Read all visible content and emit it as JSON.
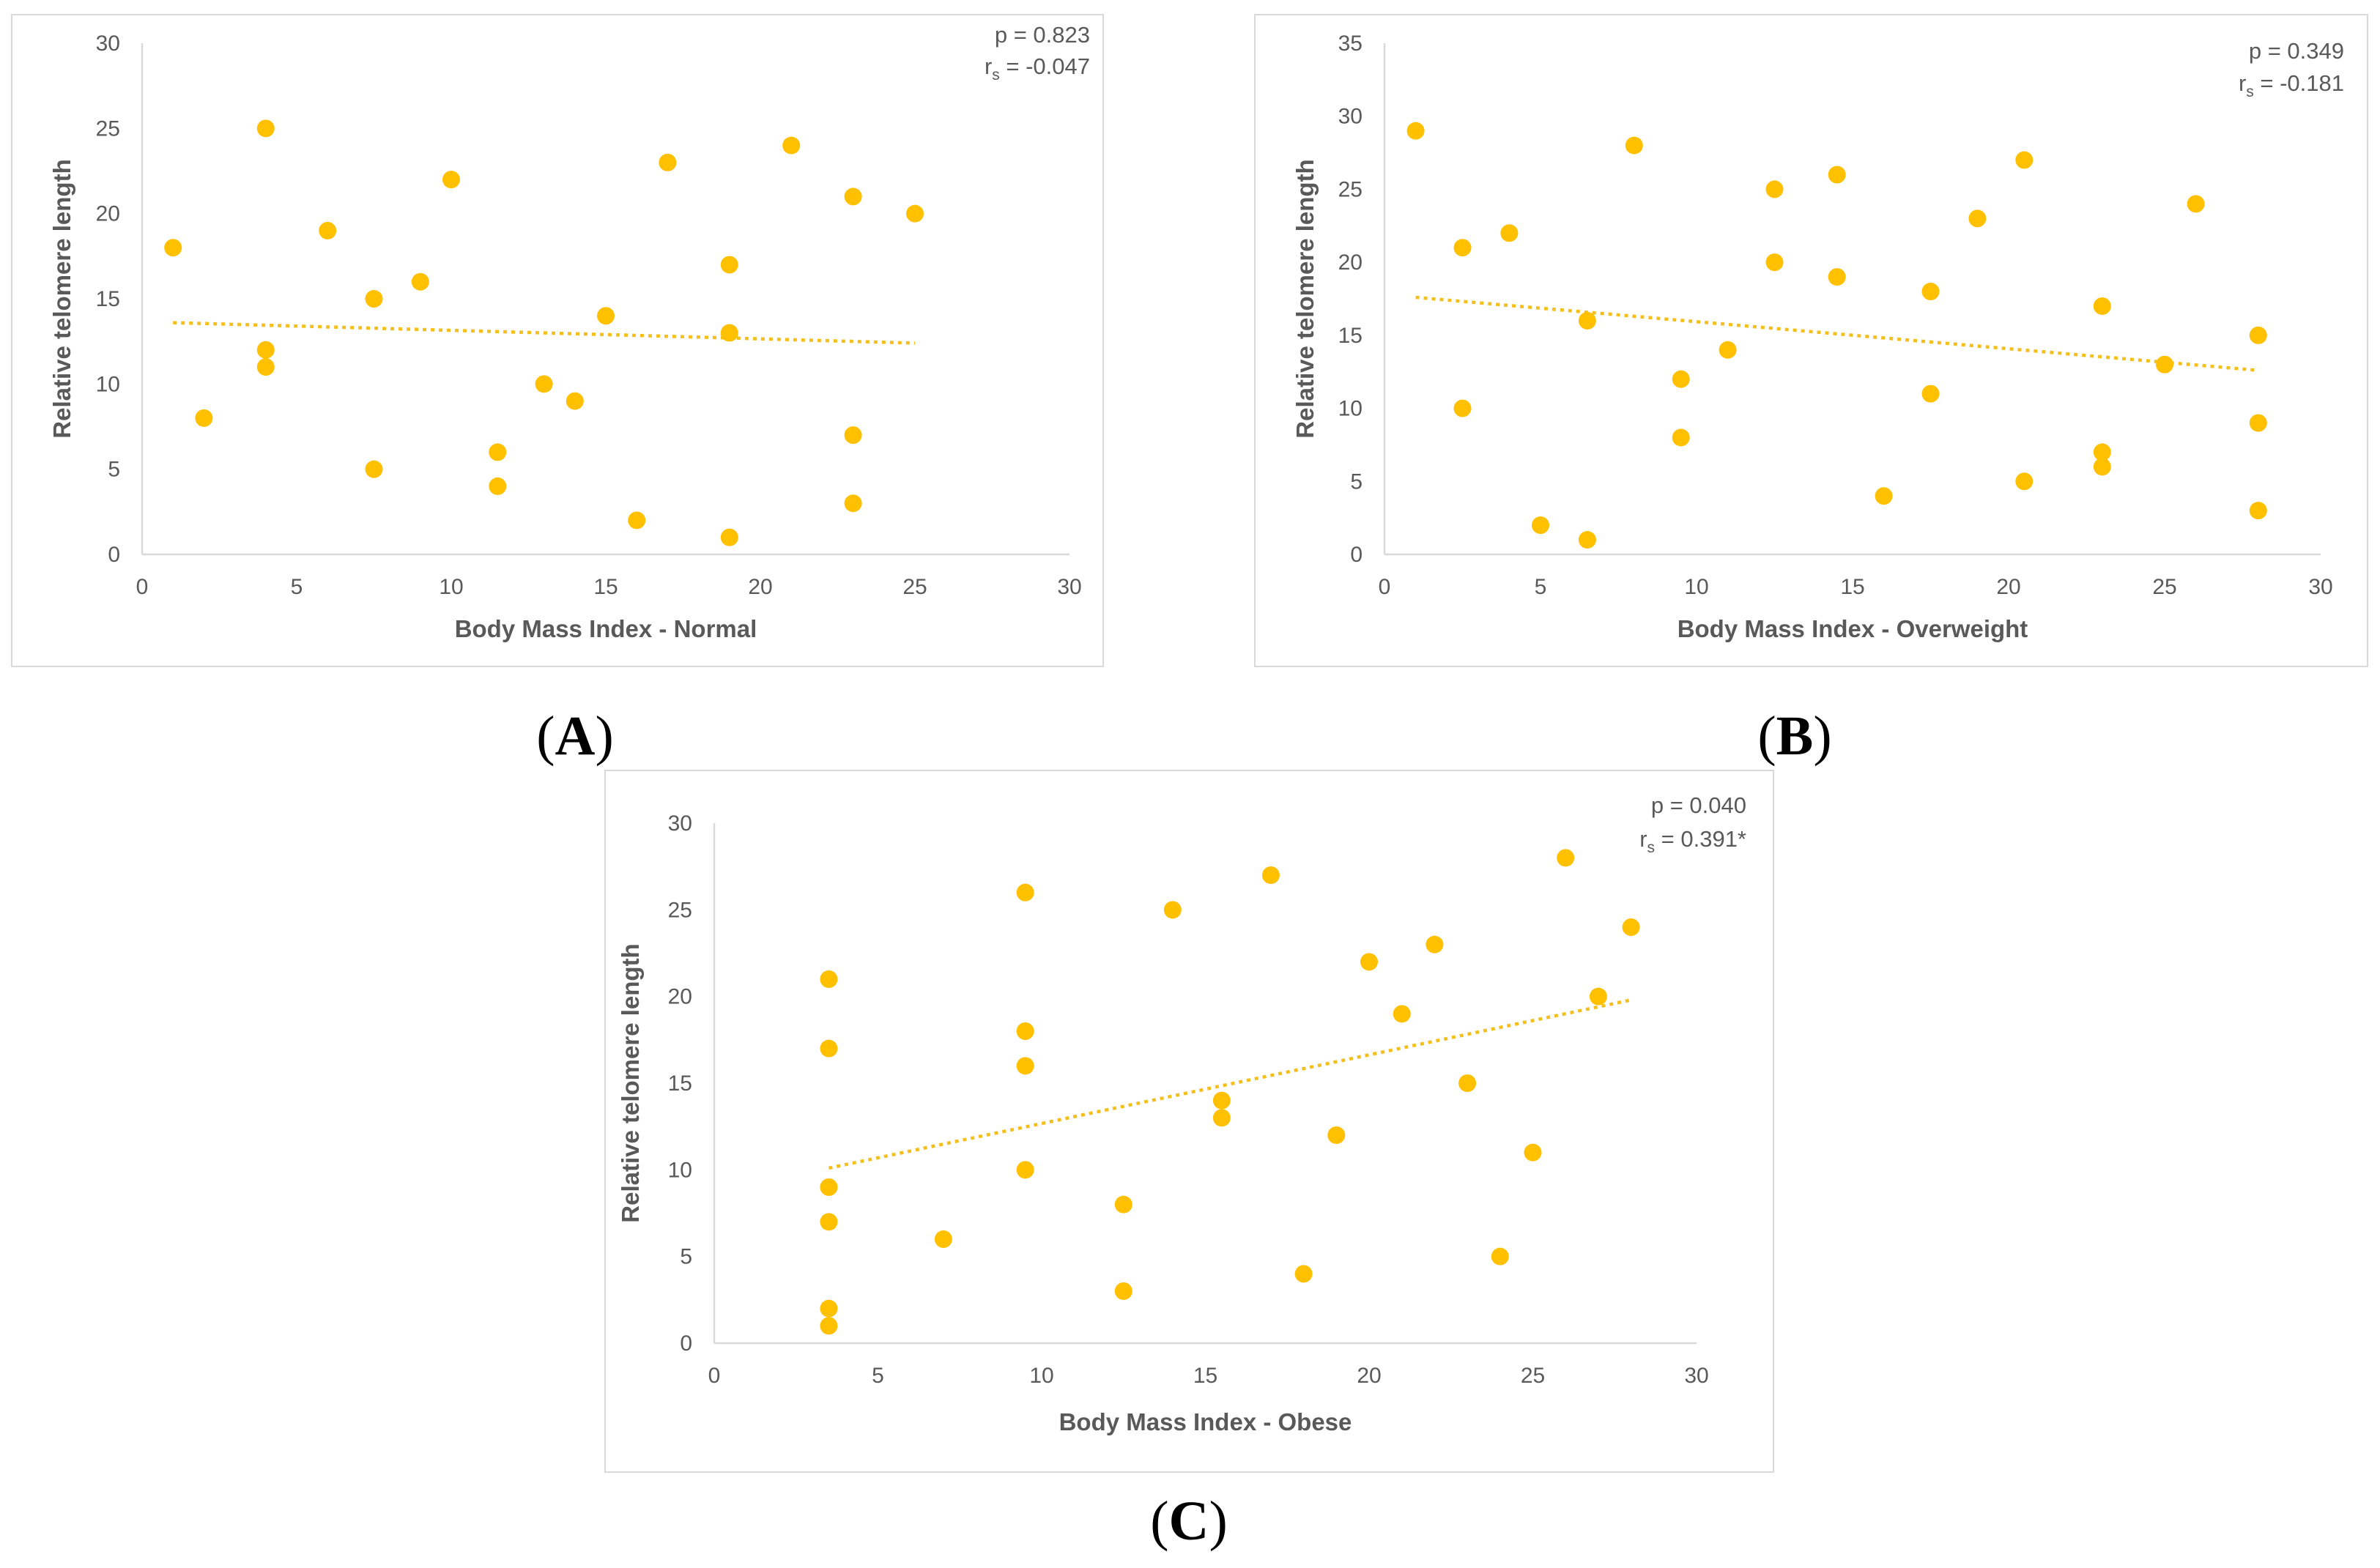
{
  "chart_data": [
    {
      "id": "A",
      "type": "scatter",
      "panel_label": "A",
      "xlabel": "Body Mass Index - Normal",
      "ylabel": "Relative telomere length",
      "xlim": [
        0,
        30
      ],
      "ylim": [
        0,
        30
      ],
      "xticks": [
        "0",
        "5",
        "10",
        "15",
        "20",
        "25",
        "30"
      ],
      "yticks": [
        "0",
        "5",
        "10",
        "15",
        "20",
        "25",
        "30"
      ],
      "stats": {
        "p_label": "p = 0.823",
        "rs_prefix": "r",
        "rs_sub": "s",
        "rs_value": " = -0.047"
      },
      "series_color": "#ffc000",
      "points": [
        [
          1,
          18
        ],
        [
          2,
          8
        ],
        [
          4,
          25
        ],
        [
          4,
          12
        ],
        [
          4,
          11
        ],
        [
          6,
          19
        ],
        [
          7.5,
          15
        ],
        [
          7.5,
          5
        ],
        [
          9,
          16
        ],
        [
          10,
          22
        ],
        [
          11.5,
          6
        ],
        [
          11.5,
          4
        ],
        [
          13,
          10
        ],
        [
          14,
          9
        ],
        [
          15,
          14
        ],
        [
          16,
          2
        ],
        [
          17,
          23
        ],
        [
          19,
          17
        ],
        [
          19,
          13
        ],
        [
          19,
          1
        ],
        [
          21,
          24
        ],
        [
          23,
          21
        ],
        [
          23,
          7
        ],
        [
          23,
          3
        ],
        [
          25,
          20
        ]
      ],
      "trendline": [
        [
          1,
          13.6
        ],
        [
          25,
          12.4
        ]
      ]
    },
    {
      "id": "B",
      "type": "scatter",
      "panel_label": "B",
      "xlabel": "Body Mass Index - Overweight",
      "ylabel": "Relative telomere length",
      "xlim": [
        0,
        30
      ],
      "ylim": [
        0,
        35
      ],
      "xticks": [
        "0",
        "5",
        "10",
        "15",
        "20",
        "25",
        "30"
      ],
      "yticks": [
        "0",
        "5",
        "10",
        "15",
        "20",
        "25",
        "30",
        "35"
      ],
      "stats": {
        "p_label": "p = 0.349",
        "rs_prefix": "r",
        "rs_sub": "s",
        "rs_value": " = -0.181"
      },
      "series_color": "#ffc000",
      "points": [
        [
          1,
          29
        ],
        [
          2.5,
          21
        ],
        [
          2.5,
          10
        ],
        [
          4,
          22
        ],
        [
          5,
          2
        ],
        [
          6.5,
          16
        ],
        [
          6.5,
          1
        ],
        [
          8,
          28
        ],
        [
          9.5,
          12
        ],
        [
          9.5,
          8
        ],
        [
          11,
          14
        ],
        [
          12.5,
          25
        ],
        [
          12.5,
          20
        ],
        [
          14.5,
          26
        ],
        [
          14.5,
          19
        ],
        [
          16,
          4
        ],
        [
          17.5,
          18
        ],
        [
          17.5,
          11
        ],
        [
          19,
          23
        ],
        [
          20.5,
          27
        ],
        [
          20.5,
          5
        ],
        [
          23,
          17
        ],
        [
          23,
          7
        ],
        [
          23,
          6
        ],
        [
          25,
          13
        ],
        [
          26,
          24
        ],
        [
          28,
          15
        ],
        [
          28,
          9
        ],
        [
          28,
          3
        ]
      ],
      "trendline": [
        [
          1,
          17.6
        ],
        [
          28,
          12.6
        ]
      ]
    },
    {
      "id": "C",
      "type": "scatter",
      "panel_label": "C",
      "xlabel": "Body Mass Index - Obese",
      "ylabel": "Relative telomere length",
      "xlim": [
        0,
        30
      ],
      "ylim": [
        0,
        30
      ],
      "xticks": [
        "0",
        "5",
        "10",
        "15",
        "20",
        "25",
        "30"
      ],
      "yticks": [
        "0",
        "5",
        "10",
        "15",
        "20",
        "25",
        "30"
      ],
      "stats": {
        "p_label": "p = 0.040",
        "rs_prefix": "r",
        "rs_sub": "s",
        "rs_value": " = 0.391*"
      },
      "series_color": "#ffc000",
      "points": [
        [
          3.5,
          21
        ],
        [
          3.5,
          17
        ],
        [
          3.5,
          9
        ],
        [
          3.5,
          7
        ],
        [
          3.5,
          2
        ],
        [
          3.5,
          1
        ],
        [
          7,
          6
        ],
        [
          9.5,
          26
        ],
        [
          9.5,
          18
        ],
        [
          9.5,
          16
        ],
        [
          9.5,
          10
        ],
        [
          12.5,
          8
        ],
        [
          12.5,
          3
        ],
        [
          14,
          25
        ],
        [
          15.5,
          14
        ],
        [
          15.5,
          13
        ],
        [
          17,
          27
        ],
        [
          18,
          4
        ],
        [
          19,
          12
        ],
        [
          20,
          22
        ],
        [
          21,
          19
        ],
        [
          22,
          23
        ],
        [
          23,
          15
        ],
        [
          24,
          5
        ],
        [
          25,
          11
        ],
        [
          26,
          28
        ],
        [
          27,
          20
        ],
        [
          28,
          24
        ]
      ],
      "trendline": [
        [
          3.5,
          10.1
        ],
        [
          28,
          19.8
        ]
      ]
    }
  ]
}
